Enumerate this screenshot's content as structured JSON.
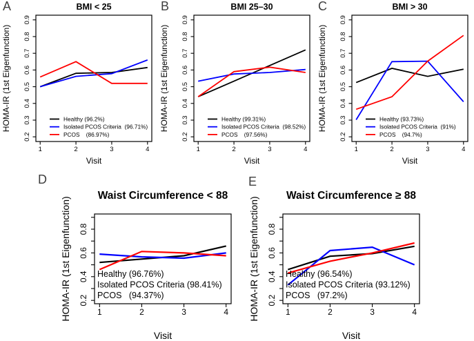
{
  "figure": {
    "background": "#ffffff"
  },
  "chart_data": [
    {
      "type": "line",
      "panel_letter": "A",
      "title": "BMI < 25",
      "xlabel": "Visit",
      "ylabel": "HOMA-IR (1st Eigenfunction)",
      "x": [
        1,
        2,
        3,
        4
      ],
      "xticks": [
        1,
        2,
        3,
        4
      ],
      "xlim": [
        1,
        4
      ],
      "ylim": [
        0.2,
        0.9
      ],
      "yticks": [
        0.2,
        0.3,
        0.4,
        0.5,
        0.6,
        0.7,
        0.8,
        0.9
      ],
      "ytick_labels": [
        0.2,
        0.3,
        0.4,
        0.5,
        0.6,
        0.7,
        0.8,
        0.9
      ],
      "grid": false,
      "legend_position": "inside-bottom-right",
      "legend_has_line_swatches": true,
      "series": [
        {
          "name": "Healthy",
          "legend_label": "Healthy (96.2%)",
          "color": "#000000",
          "values": [
            0.5,
            0.58,
            0.585,
            0.615
          ]
        },
        {
          "name": "Isolated PCOS Criteria",
          "legend_label": "Isolated PCOS Criteria  (96.71%)",
          "color": "#0000ff",
          "values": [
            0.5,
            0.562,
            0.578,
            0.66
          ]
        },
        {
          "name": "PCOS",
          "legend_label": "PCOS    (86.97%)",
          "color": "#ff0000",
          "values": [
            0.558,
            0.65,
            0.52,
            0.52
          ]
        }
      ]
    },
    {
      "type": "line",
      "panel_letter": "B",
      "title": "BMI 25–30",
      "xlabel": "Visit",
      "ylabel": "HOMA-IR (1st Eigenfunction)",
      "x": [
        1,
        2,
        3,
        4
      ],
      "xticks": [
        1,
        2,
        3,
        4
      ],
      "xlim": [
        1,
        4
      ],
      "ylim": [
        0.2,
        0.9
      ],
      "yticks": [
        0.2,
        0.3,
        0.4,
        0.5,
        0.6,
        0.7,
        0.8,
        0.9
      ],
      "ytick_labels": [
        0.2,
        0.3,
        0.4,
        0.5,
        0.6,
        0.7,
        0.8,
        0.9
      ],
      "grid": false,
      "legend_position": "inside-bottom-right",
      "legend_has_line_swatches": true,
      "series": [
        {
          "name": "Healthy",
          "legend_label": "Healthy (99.31%)",
          "color": "#000000",
          "values": [
            0.44,
            0.533,
            0.627,
            0.72
          ]
        },
        {
          "name": "Isolated PCOS Criteria",
          "legend_label": "Isolated PCOS Criteria  (98.52%)",
          "color": "#0000ff",
          "values": [
            0.533,
            0.576,
            0.585,
            0.603
          ]
        },
        {
          "name": "PCOS",
          "legend_label": "PCOS    (97.56%)",
          "color": "#ff0000",
          "values": [
            0.44,
            0.59,
            0.617,
            0.585
          ]
        }
      ]
    },
    {
      "type": "line",
      "panel_letter": "C",
      "title": "BMI > 30",
      "xlabel": "Visit",
      "ylabel": "HOMA-IR (1st Eigenfunction)",
      "x": [
        1,
        2,
        3,
        4
      ],
      "xticks": [
        1,
        2,
        3,
        4
      ],
      "xlim": [
        1,
        4
      ],
      "ylim": [
        0.2,
        0.9
      ],
      "yticks": [
        0.2,
        0.3,
        0.4,
        0.5,
        0.6,
        0.7,
        0.8,
        0.9
      ],
      "ytick_labels": [
        0.2,
        0.3,
        0.4,
        0.5,
        0.6,
        0.7,
        0.8,
        0.9
      ],
      "grid": false,
      "legend_position": "inside-bottom-right",
      "legend_has_line_swatches": true,
      "series": [
        {
          "name": "Healthy",
          "legend_label": "Healthy (93.73%)",
          "color": "#000000",
          "values": [
            0.525,
            0.61,
            0.562,
            0.605
          ]
        },
        {
          "name": "Isolated PCOS Criteria",
          "legend_label": "Isolated PCOS Criteria  (91%)",
          "color": "#0000ff",
          "values": [
            0.302,
            0.65,
            0.653,
            0.41
          ]
        },
        {
          "name": "PCOS",
          "legend_label": "PCOS    (94.7%)",
          "color": "#ff0000",
          "values": [
            0.365,
            0.44,
            0.653,
            0.807
          ]
        }
      ]
    },
    {
      "type": "line",
      "panel_letter": "D",
      "title": "Waist Circumference < 88",
      "xlabel": "Visit",
      "ylabel": "HOMA-IR (1st Eigenfunction)",
      "x": [
        1,
        2,
        3,
        4
      ],
      "xticks": [
        1,
        2,
        3,
        4
      ],
      "xlim": [
        1,
        4
      ],
      "ylim": [
        0.2,
        0.9
      ],
      "yticks": [
        0.2,
        0.3,
        0.4,
        0.5,
        0.6,
        0.7,
        0.8,
        0.9
      ],
      "ytick_labels": [
        0.2,
        0.4,
        0.6,
        0.8
      ],
      "grid": false,
      "legend_position": "inside-bottom-left",
      "legend_has_line_swatches": false,
      "series": [
        {
          "name": "Healthy",
          "legend_label": "Healthy (96.76%)",
          "color": "#000000",
          "values": [
            0.52,
            0.548,
            0.576,
            0.658
          ]
        },
        {
          "name": "Isolated PCOS Criteria",
          "legend_label": "Isolated PCOS Criteria (98.41%)",
          "color": "#0000ff",
          "values": [
            0.59,
            0.567,
            0.556,
            0.6
          ]
        },
        {
          "name": "PCOS",
          "legend_label": "PCOS   (94.37%)",
          "color": "#ff0000",
          "values": [
            0.46,
            0.612,
            0.6,
            0.576
          ]
        }
      ]
    },
    {
      "type": "line",
      "panel_letter": "E",
      "title": "Waist Circumference ≥ 88",
      "xlabel": "Visit",
      "ylabel": "HOMA-IR (1st Eigenfunction)",
      "x": [
        1,
        2,
        3,
        4
      ],
      "xticks": [
        1,
        2,
        3,
        4
      ],
      "xlim": [
        1,
        4
      ],
      "ylim": [
        0.2,
        0.9
      ],
      "yticks": [
        0.2,
        0.3,
        0.4,
        0.5,
        0.6,
        0.7,
        0.8,
        0.9
      ],
      "ytick_labels": [
        0.2,
        0.4,
        0.6,
        0.8
      ],
      "grid": false,
      "legend_position": "inside-bottom-left",
      "legend_has_line_swatches": false,
      "series": [
        {
          "name": "Healthy",
          "legend_label": "Healthy (96.54%)",
          "color": "#000000",
          "values": [
            0.46,
            0.572,
            0.594,
            0.656
          ]
        },
        {
          "name": "Isolated PCOS Criteria",
          "legend_label": "Isolated PCOS Criteria (93.12%)",
          "color": "#0000ff",
          "values": [
            0.33,
            0.62,
            0.648,
            0.5
          ]
        },
        {
          "name": "PCOS",
          "legend_label": "PCOS   (97.2%)",
          "color": "#ff0000",
          "values": [
            0.43,
            0.53,
            0.6,
            0.684
          ]
        }
      ]
    }
  ]
}
